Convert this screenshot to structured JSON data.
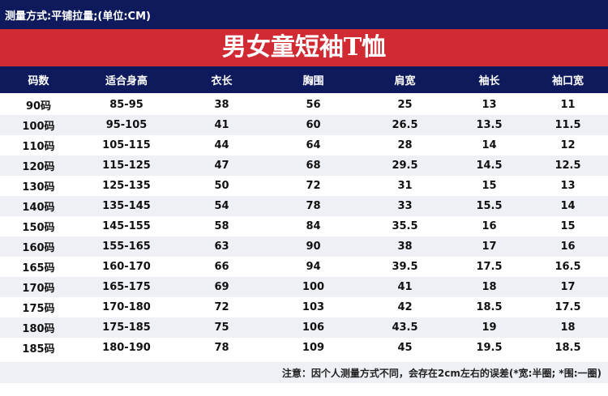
{
  "header": {
    "measure_note": "测量方式:平铺拉量;(单位:CM)"
  },
  "title": "男女童短袖T恤",
  "table": {
    "columns": [
      "码数",
      "适合身高",
      "衣长",
      "胸围",
      "肩宽",
      "袖长",
      "袖口宽"
    ],
    "rows": [
      [
        "90码",
        "85-95",
        "38",
        "56",
        "25",
        "13",
        "11"
      ],
      [
        "100码",
        "95-105",
        "41",
        "60",
        "26.5",
        "13.5",
        "11.5"
      ],
      [
        "110码",
        "105-115",
        "44",
        "64",
        "28",
        "14",
        "12"
      ],
      [
        "120码",
        "115-125",
        "47",
        "68",
        "29.5",
        "14.5",
        "12.5"
      ],
      [
        "130码",
        "125-135",
        "50",
        "72",
        "31",
        "15",
        "13"
      ],
      [
        "140码",
        "135-145",
        "54",
        "78",
        "33",
        "15.5",
        "14"
      ],
      [
        "150码",
        "145-155",
        "58",
        "84",
        "35.5",
        "16",
        "15"
      ],
      [
        "160码",
        "155-165",
        "63",
        "90",
        "38",
        "17",
        "16"
      ],
      [
        "165码",
        "160-170",
        "66",
        "94",
        "39.5",
        "17.5",
        "16.5"
      ],
      [
        "170码",
        "165-175",
        "69",
        "100",
        "41",
        "18",
        "17"
      ],
      [
        "175码",
        "170-180",
        "72",
        "103",
        "42",
        "18.5",
        "17.5"
      ],
      [
        "180码",
        "175-185",
        "75",
        "106",
        "43.5",
        "19",
        "18"
      ],
      [
        "185码",
        "180-190",
        "78",
        "109",
        "45",
        "19.5",
        "18.5"
      ]
    ]
  },
  "footer": {
    "note": "注意：因个人测量方式不同，会存在2cm左右的误差(*宽:半圈; *围:一圈)"
  },
  "colors": {
    "navy": "#0e1a5c",
    "red": "#d02a32",
    "stripe": "#eef0f6"
  }
}
